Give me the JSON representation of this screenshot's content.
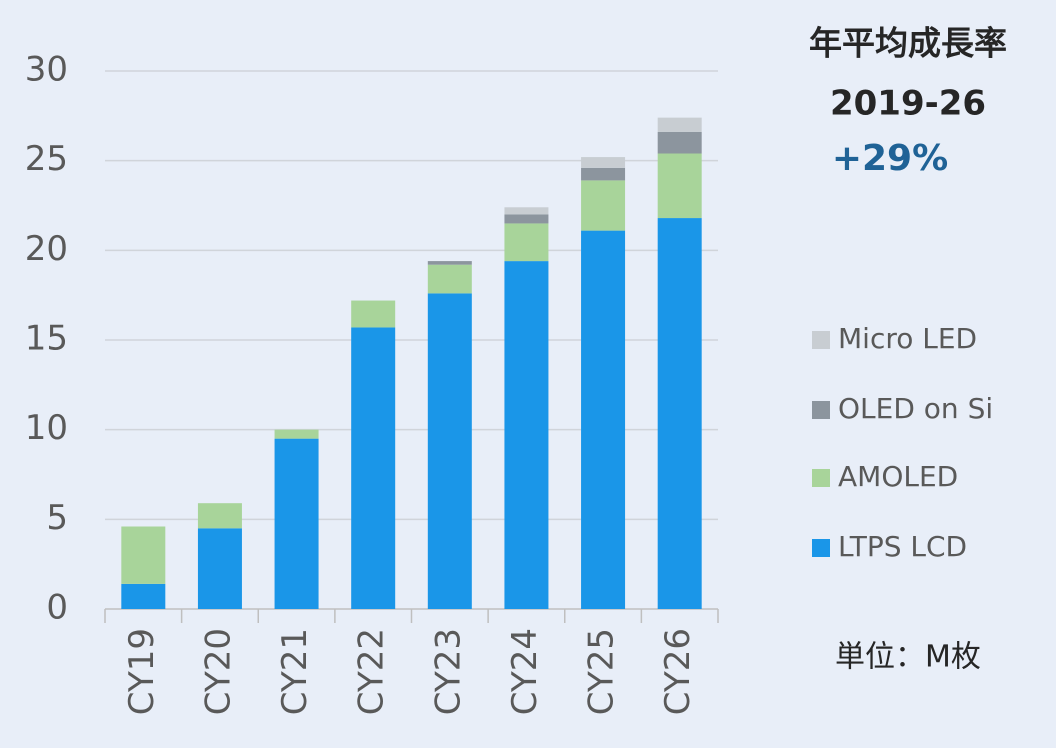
{
  "chart_data": {
    "type": "stacked_bar",
    "title": "年平均成長率",
    "subtitle": "2019-26",
    "annotations": [
      "+29%",
      "単位：M枚"
    ],
    "categories": [
      "CY19",
      "CY20",
      "CY21",
      "CY22",
      "CY23",
      "CY24",
      "CY25",
      "CY26"
    ],
    "series": [
      {
        "name": "LTPS LCD",
        "color": "#1a96e8",
        "values": [
          1.4,
          4.5,
          9.5,
          15.7,
          17.6,
          19.4,
          21.1,
          21.8
        ]
      },
      {
        "name": "AMOLED",
        "color": "#a8d49a",
        "values": [
          3.2,
          1.4,
          0.5,
          1.5,
          1.6,
          2.1,
          2.8,
          3.6
        ]
      },
      {
        "name": "OLED on Si",
        "color": "#8c959e",
        "values": [
          null,
          null,
          null,
          null,
          0.2,
          0.5,
          0.7,
          1.2
        ]
      },
      {
        "name": "Micro LED",
        "color": "#c8cdd2",
        "values": [
          null,
          null,
          null,
          null,
          null,
          0.4,
          0.6,
          0.8
        ]
      }
    ],
    "ylim": [
      0,
      30
    ],
    "yticks": [
      0,
      5,
      10,
      15,
      20,
      25,
      30
    ],
    "grid": true
  }
}
